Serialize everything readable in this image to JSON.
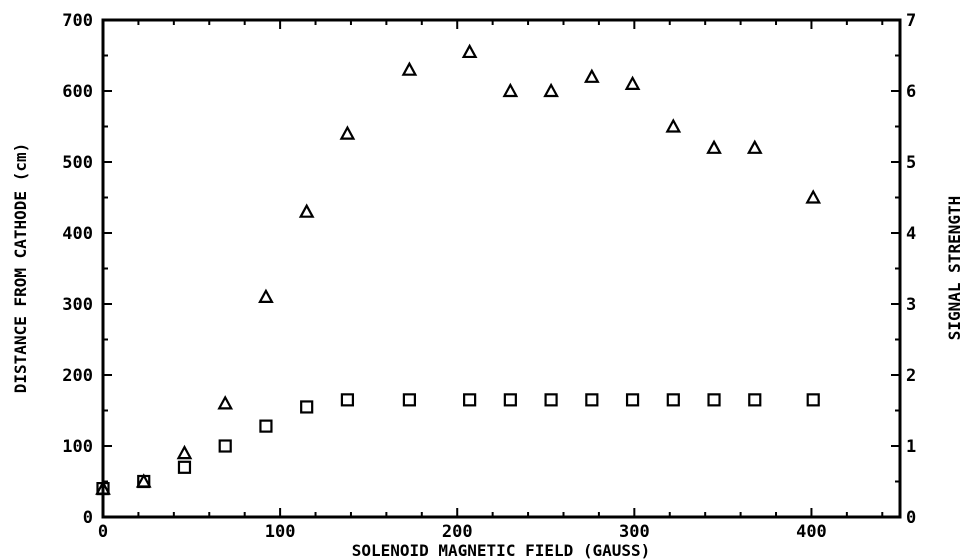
{
  "chart_data": {
    "type": "scatter",
    "title": "",
    "xlabel": "SOLENOID MAGNETIC FIELD (GAUSS)",
    "ylabel": "DISTANCE FROM CATHODE (cm)",
    "ylabel_right": "SIGNAL STRENGTH",
    "xlim": [
      0,
      450
    ],
    "ylim": [
      0,
      700
    ],
    "ylim_right": [
      0,
      7
    ],
    "grid": false,
    "x_ticks": [
      0,
      100,
      200,
      300,
      400
    ],
    "y_ticks": [
      0,
      100,
      200,
      300,
      400,
      500,
      600,
      700
    ],
    "y_right_ticks": [
      0,
      1,
      2,
      3,
      4,
      5,
      6,
      7
    ],
    "series": [
      {
        "marker": "triangle",
        "axis": "left",
        "points": [
          [
            0,
            40
          ],
          [
            23,
            50
          ],
          [
            46,
            90
          ],
          [
            69,
            160
          ],
          [
            92,
            310
          ],
          [
            115,
            430
          ],
          [
            138,
            540
          ],
          [
            173,
            630
          ],
          [
            207,
            655
          ],
          [
            230,
            600
          ],
          [
            253,
            600
          ],
          [
            276,
            620
          ],
          [
            299,
            610
          ],
          [
            322,
            550
          ],
          [
            345,
            520
          ],
          [
            368,
            520
          ],
          [
            401,
            450
          ]
        ]
      },
      {
        "marker": "square",
        "axis": "left",
        "points": [
          [
            0,
            40
          ],
          [
            23,
            50
          ],
          [
            46,
            70
          ],
          [
            69,
            100
          ],
          [
            92,
            128
          ],
          [
            115,
            155
          ],
          [
            138,
            165
          ],
          [
            173,
            165
          ],
          [
            207,
            165
          ],
          [
            230,
            165
          ],
          [
            253,
            165
          ],
          [
            276,
            165
          ],
          [
            299,
            165
          ],
          [
            322,
            165
          ],
          [
            345,
            165
          ],
          [
            368,
            165
          ],
          [
            401,
            165
          ]
        ]
      }
    ]
  }
}
